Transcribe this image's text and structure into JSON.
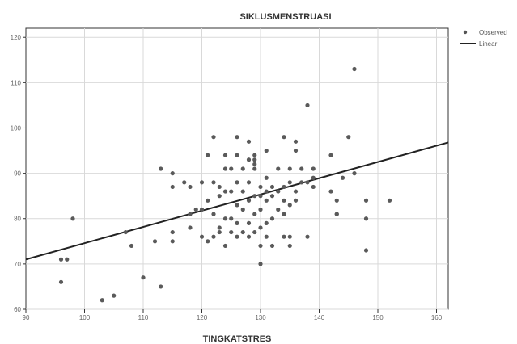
{
  "chart_data": {
    "type": "scatter",
    "title": "SIKLUSMENSTRUASI",
    "xlabel": "TINGKATSTRES",
    "ylabel": "",
    "xlim": [
      90,
      162
    ],
    "ylim": [
      60,
      122
    ],
    "xticks": [
      90,
      100,
      110,
      120,
      130,
      140,
      150,
      160
    ],
    "yticks": [
      60,
      70,
      80,
      90,
      100,
      110,
      120
    ],
    "grid": true,
    "legend": {
      "position": "right",
      "entries": [
        "Observed",
        "Linear"
      ]
    },
    "fit_line": {
      "x": [
        90,
        162
      ],
      "y": [
        71.0,
        96.8
      ]
    },
    "series": [
      {
        "name": "Observed",
        "points": [
          [
            96,
            66
          ],
          [
            97,
            71
          ],
          [
            98,
            80
          ],
          [
            103,
            62
          ],
          [
            105,
            63
          ],
          [
            107,
            77
          ],
          [
            108,
            74
          ],
          [
            110,
            67
          ],
          [
            112,
            75
          ],
          [
            113,
            65
          ],
          [
            113,
            91
          ],
          [
            115,
            75
          ],
          [
            115,
            77
          ],
          [
            115,
            87
          ],
          [
            115,
            90
          ],
          [
            117,
            88
          ],
          [
            118,
            78
          ],
          [
            118,
            81
          ],
          [
            118,
            87
          ],
          [
            119,
            82
          ],
          [
            120,
            76
          ],
          [
            120,
            82
          ],
          [
            120,
            88
          ],
          [
            121,
            75
          ],
          [
            121,
            84
          ],
          [
            121,
            94
          ],
          [
            122,
            76
          ],
          [
            122,
            81
          ],
          [
            122,
            88
          ],
          [
            122,
            98
          ],
          [
            123,
            77
          ],
          [
            123,
            78
          ],
          [
            123,
            85
          ],
          [
            123,
            87
          ],
          [
            124,
            74
          ],
          [
            124,
            80
          ],
          [
            124,
            86
          ],
          [
            124,
            91
          ],
          [
            124,
            94
          ],
          [
            125,
            77
          ],
          [
            125,
            80
          ],
          [
            125,
            86
          ],
          [
            125,
            91
          ],
          [
            126,
            76
          ],
          [
            126,
            79
          ],
          [
            126,
            83
          ],
          [
            126,
            88
          ],
          [
            126,
            94
          ],
          [
            126,
            98
          ],
          [
            127,
            77
          ],
          [
            127,
            82
          ],
          [
            127,
            86
          ],
          [
            127,
            91
          ],
          [
            128,
            76
          ],
          [
            128,
            79
          ],
          [
            128,
            84
          ],
          [
            128,
            88
          ],
          [
            128,
            93
          ],
          [
            128,
            97
          ],
          [
            129,
            77
          ],
          [
            129,
            81
          ],
          [
            129,
            85
          ],
          [
            129,
            91
          ],
          [
            129,
            92
          ],
          [
            129,
            93
          ],
          [
            129,
            94
          ],
          [
            130,
            70
          ],
          [
            130,
            74
          ],
          [
            130,
            78
          ],
          [
            130,
            82
          ],
          [
            130,
            85
          ],
          [
            130,
            87
          ],
          [
            131,
            76
          ],
          [
            131,
            79
          ],
          [
            131,
            84
          ],
          [
            131,
            86
          ],
          [
            131,
            89
          ],
          [
            131,
            95
          ],
          [
            132,
            74
          ],
          [
            132,
            80
          ],
          [
            132,
            85
          ],
          [
            132,
            87
          ],
          [
            133,
            82
          ],
          [
            133,
            86
          ],
          [
            133,
            91
          ],
          [
            134,
            76
          ],
          [
            134,
            81
          ],
          [
            134,
            84
          ],
          [
            134,
            87
          ],
          [
            134,
            98
          ],
          [
            135,
            74
          ],
          [
            135,
            76
          ],
          [
            135,
            83
          ],
          [
            135,
            88
          ],
          [
            135,
            91
          ],
          [
            136,
            84
          ],
          [
            136,
            86
          ],
          [
            136,
            95
          ],
          [
            136,
            97
          ],
          [
            137,
            88
          ],
          [
            137,
            91
          ],
          [
            138,
            76
          ],
          [
            138,
            88
          ],
          [
            138,
            105
          ],
          [
            139,
            87
          ],
          [
            139,
            89
          ],
          [
            139,
            91
          ],
          [
            142,
            86
          ],
          [
            142,
            94
          ],
          [
            143,
            81
          ],
          [
            143,
            84
          ],
          [
            143,
            81
          ],
          [
            144,
            89
          ],
          [
            145,
            98
          ],
          [
            146,
            113
          ],
          [
            146,
            90
          ],
          [
            148,
            73
          ],
          [
            148,
            80
          ],
          [
            148,
            84
          ],
          [
            152,
            84
          ],
          [
            96,
            71
          ]
        ]
      }
    ]
  }
}
